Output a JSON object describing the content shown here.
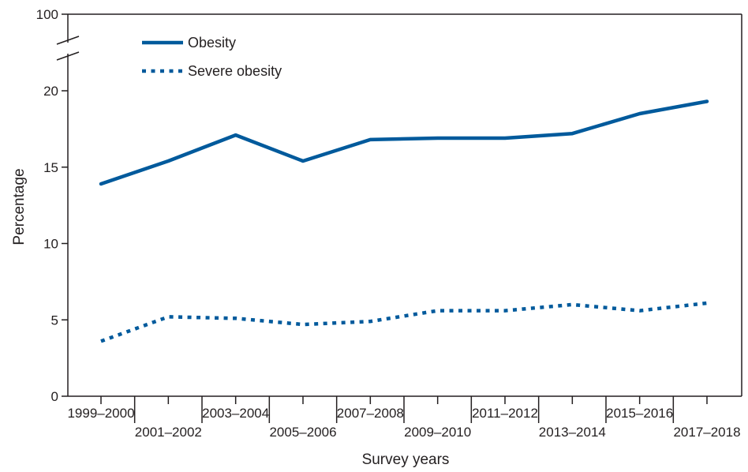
{
  "chart_data": {
    "type": "line",
    "title": "",
    "xlabel": "Survey years",
    "ylabel": "Percentage",
    "categories": [
      "1999–2000",
      "2001–2002",
      "2003–2004",
      "2005–2006",
      "2007–2008",
      "2009–2010",
      "2011–2012",
      "2013–2014",
      "2015–2016",
      "2017–2018"
    ],
    "y_ticks": [
      "0",
      "5",
      "10",
      "15",
      "20"
    ],
    "y_break_tick": "100",
    "ylim": [
      0,
      20
    ],
    "axis_break": true,
    "grid": false,
    "legend_position": "top-left",
    "series": [
      {
        "name": "Obesity",
        "style": "solid",
        "color": "#005a9c",
        "values": [
          13.9,
          15.4,
          17.1,
          15.4,
          16.8,
          16.9,
          16.9,
          17.2,
          18.5,
          19.3
        ]
      },
      {
        "name": "Severe obesity",
        "style": "dotted",
        "color": "#005a9c",
        "values": [
          3.6,
          5.2,
          5.1,
          4.7,
          4.9,
          5.6,
          5.6,
          6.0,
          5.6,
          6.1
        ]
      }
    ]
  }
}
